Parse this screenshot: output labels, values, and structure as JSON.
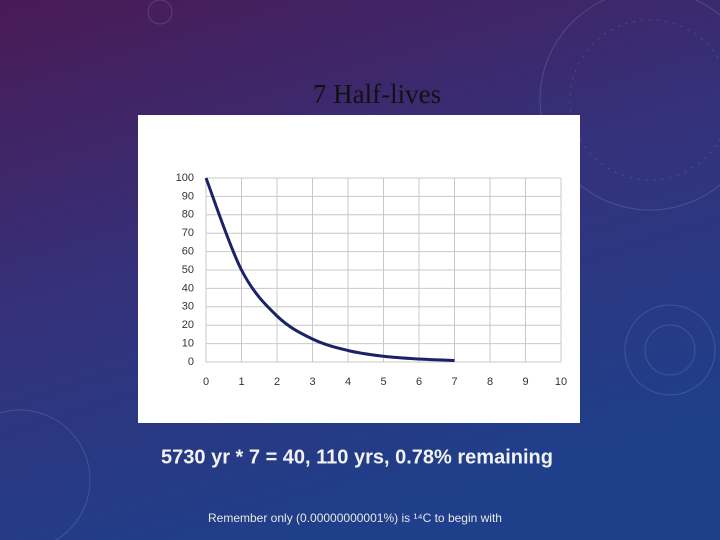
{
  "chart_data": {
    "type": "line",
    "title": "7 Half-lives",
    "x": [
      0,
      1,
      2,
      3,
      4,
      5,
      6,
      7
    ],
    "values": [
      100,
      50,
      25,
      12.5,
      6.25,
      3.1,
      1.6,
      0.8
    ],
    "color": "#1b2366",
    "xlim": [
      0,
      10
    ],
    "xticks": [
      0,
      1,
      2,
      3,
      4,
      5,
      6,
      7,
      8,
      9,
      10
    ],
    "ylim": [
      0,
      100
    ],
    "yticks": [
      0,
      10,
      20,
      30,
      40,
      50,
      60,
      70,
      80,
      90,
      100
    ],
    "grid": true,
    "caption": "5730 yr * 7 = 40, 110 yrs,  0.78% remaining",
    "note": "Remember only (0.00000000001%) is ¹⁴C to begin with"
  }
}
